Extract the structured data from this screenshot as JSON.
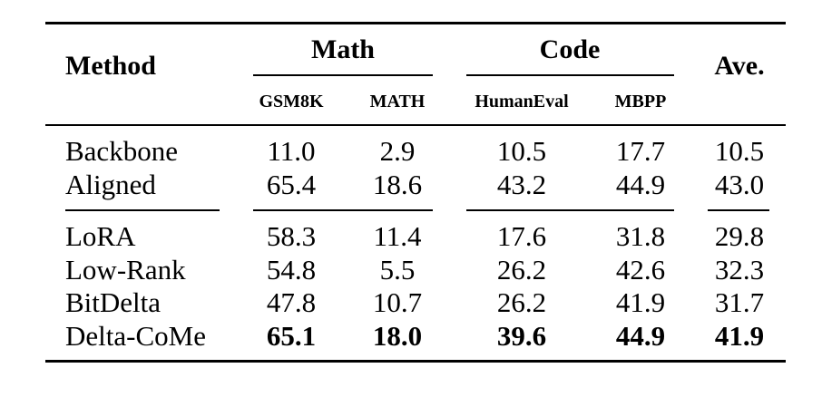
{
  "table": {
    "header": {
      "method": "Method",
      "groups": [
        {
          "label": "Math",
          "columns": [
            "GSM8K",
            "MATH"
          ]
        },
        {
          "label": "Code",
          "columns": [
            "HumanEval",
            "MBPP"
          ]
        }
      ],
      "average": "Ave."
    },
    "rows": [
      {
        "method": "Backbone",
        "values": [
          "11.0",
          "2.9",
          "10.5",
          "17.7",
          "10.5"
        ]
      },
      {
        "method": "Aligned",
        "values": [
          "65.4",
          "18.6",
          "43.2",
          "44.9",
          "43.0"
        ]
      },
      {
        "method": "LoRA",
        "values": [
          "58.3",
          "11.4",
          "17.6",
          "31.8",
          "29.8"
        ]
      },
      {
        "method": "Low-Rank",
        "values": [
          "54.8",
          "5.5",
          "26.2",
          "42.6",
          "32.3"
        ]
      },
      {
        "method": "BitDelta",
        "values": [
          "47.8",
          "10.7",
          "26.2",
          "41.9",
          "31.7"
        ]
      },
      {
        "method": "Delta-CoMe",
        "values": [
          "65.1",
          "18.0",
          "39.6",
          "44.9",
          "41.9"
        ]
      }
    ],
    "bold_row": "Delta-CoMe"
  }
}
